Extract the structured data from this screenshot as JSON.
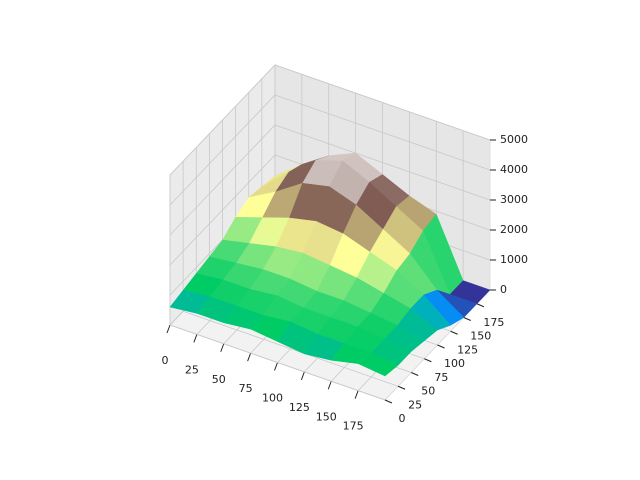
{
  "chart_data": {
    "type": "surface",
    "colormap": "terrain",
    "x": [
      0,
      25,
      50,
      75,
      100,
      125,
      150,
      175,
      200
    ],
    "y": [
      0,
      25,
      50,
      75,
      100,
      125,
      150,
      175,
      200
    ],
    "z": [
      [
        600,
        700,
        700,
        800,
        700,
        600,
        700,
        900,
        800
      ],
      [
        700,
        800,
        800,
        800,
        900,
        800,
        800,
        800,
        700
      ],
      [
        800,
        900,
        900,
        1000,
        900,
        900,
        900,
        800,
        700
      ],
      [
        900,
        1000,
        1100,
        1100,
        1000,
        1000,
        900,
        800,
        600
      ],
      [
        1000,
        1200,
        1400,
        1500,
        1400,
        1300,
        1100,
        900,
        500
      ],
      [
        1300,
        1600,
        1900,
        2100,
        2000,
        1700,
        1400,
        900,
        200
      ],
      [
        1500,
        2000,
        2600,
        2800,
        2500,
        2000,
        1500,
        600,
        0
      ],
      [
        1400,
        2200,
        2900,
        3200,
        2800,
        2300,
        1800,
        0,
        0
      ],
      [
        1300,
        2000,
        2600,
        3000,
        2600,
        2200,
        1900,
        0,
        0
      ]
    ],
    "xlim": [
      0,
      200
    ],
    "ylim": [
      0,
      200
    ],
    "zlim": [
      0,
      5000
    ],
    "xticks": [
      0,
      25,
      50,
      75,
      100,
      125,
      150,
      175
    ],
    "yticks": [
      0,
      25,
      50,
      75,
      100,
      125,
      150,
      175
    ],
    "zticks": [
      0,
      1000,
      2000,
      3000,
      4000,
      5000
    ],
    "grid": true
  }
}
